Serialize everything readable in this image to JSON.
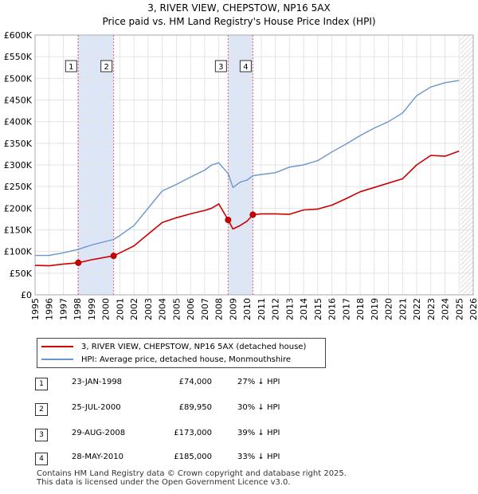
{
  "title": "3, RIVER VIEW, CHEPSTOW, NP16 5AX",
  "subtitle": "Price paid vs. HM Land Registry's House Price Index (HPI)",
  "colors": {
    "property": "#cc0000",
    "hpi": "#6a96cc",
    "shade": "#dde6f7",
    "vline": "#e06070"
  },
  "chart_data": {
    "type": "line",
    "title": "3, RIVER VIEW, CHEPSTOW, NP16 5AX",
    "xlim": [
      1995,
      2026
    ],
    "ylim": [
      0,
      600000
    ],
    "grid": true,
    "x_ticks": [
      "1995",
      "1996",
      "1997",
      "1998",
      "1999",
      "2000",
      "2001",
      "2002",
      "2003",
      "2004",
      "2005",
      "2006",
      "2007",
      "2008",
      "2009",
      "2010",
      "2011",
      "2012",
      "2013",
      "2014",
      "2015",
      "2016",
      "2017",
      "2018",
      "2019",
      "2020",
      "2021",
      "2022",
      "2023",
      "2024",
      "2025",
      "2026"
    ],
    "y_ticks": [
      "£0",
      "£50K",
      "£100K",
      "£150K",
      "£200K",
      "£250K",
      "£300K",
      "£350K",
      "£400K",
      "£450K",
      "£500K",
      "£550K",
      "£600K"
    ],
    "shaded_ranges": [
      [
        1998.06,
        2000.56
      ],
      [
        2008.66,
        2010.41
      ]
    ],
    "future_from": 2025.1,
    "series": [
      {
        "name": "3, RIVER VIEW, CHEPSTOW, NP16 5AX (detached house)",
        "x": [
          1995.0,
          1996.0,
          1997.0,
          1998.06,
          1999.0,
          2000.56,
          2001.0,
          2002.0,
          2003.0,
          2004.0,
          2005.0,
          2006.0,
          2007.0,
          2007.5,
          2008.0,
          2008.66,
          2009.0,
          2009.5,
          2010.0,
          2010.41,
          2011.0,
          2012.0,
          2013.0,
          2014.0,
          2015.0,
          2016.0,
          2017.0,
          2018.0,
          2019.0,
          2020.0,
          2021.0,
          2022.0,
          2023.0,
          2024.0,
          2025.0
        ],
        "values": [
          68000,
          67000,
          71000,
          74000,
          81000,
          89950,
          97000,
          113000,
          140000,
          167000,
          178000,
          187000,
          195000,
          200000,
          210000,
          173000,
          152000,
          160000,
          170000,
          185000,
          187000,
          187000,
          186000,
          196000,
          198000,
          207000,
          222000,
          238000,
          248000,
          258000,
          268000,
          300000,
          322000,
          320000,
          332000
        ]
      },
      {
        "name": "HPI: Average price, detached house, Monmouthshire",
        "x": [
          1995.0,
          1996.0,
          1997.0,
          1998.06,
          1999.0,
          2000.56,
          2001.0,
          2002.0,
          2003.0,
          2004.0,
          2005.0,
          2006.0,
          2007.0,
          2007.5,
          2008.0,
          2008.66,
          2009.0,
          2009.5,
          2010.0,
          2010.41,
          2011.0,
          2012.0,
          2013.0,
          2014.0,
          2015.0,
          2016.0,
          2017.0,
          2018.0,
          2019.0,
          2020.0,
          2021.0,
          2022.0,
          2023.0,
          2024.0,
          2025.0
        ],
        "values": [
          91000,
          91000,
          97000,
          105000,
          115000,
          128000,
          137000,
          160000,
          200000,
          240000,
          255000,
          272000,
          288000,
          300000,
          305000,
          280000,
          248000,
          260000,
          265000,
          275000,
          278000,
          282000,
          295000,
          300000,
          310000,
          330000,
          348000,
          368000,
          385000,
          400000,
          420000,
          460000,
          480000,
          490000,
          495000
        ]
      }
    ],
    "sales": [
      {
        "label": "1",
        "x": 1998.06,
        "value": 74000
      },
      {
        "label": "2",
        "x": 2000.56,
        "value": 89950
      },
      {
        "label": "3",
        "x": 2008.66,
        "value": 173000
      },
      {
        "label": "4",
        "x": 2010.41,
        "value": 185000
      }
    ]
  },
  "legend": {
    "property": "3, RIVER VIEW, CHEPSTOW, NP16 5AX (detached house)",
    "hpi": "HPI: Average price, detached house, Monmouthshire"
  },
  "sales_table": [
    {
      "num": "1",
      "date": "23-JAN-1998",
      "price": "£74,000",
      "hpi": "27% ↓ HPI"
    },
    {
      "num": "2",
      "date": "25-JUL-2000",
      "price": "£89,950",
      "hpi": "30% ↓ HPI"
    },
    {
      "num": "3",
      "date": "29-AUG-2008",
      "price": "£173,000",
      "hpi": "39% ↓ HPI"
    },
    {
      "num": "4",
      "date": "28-MAY-2010",
      "price": "£185,000",
      "hpi": "33% ↓ HPI"
    }
  ],
  "footer": {
    "line1": "Contains HM Land Registry data © Crown copyright and database right 2025.",
    "line2": "This data is licensed under the Open Government Licence v3.0."
  }
}
